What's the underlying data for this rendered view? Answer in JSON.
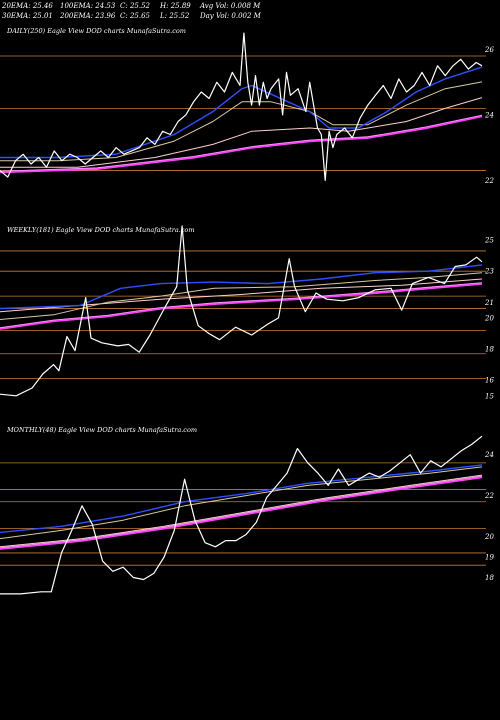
{
  "header": {
    "row1": {
      "ema20": "20EMA: 25.46",
      "ema100": "100EMA: 24.53",
      "close": "C: 25.52",
      "high": "H: 25.89",
      "avg_vol": "Avg Vol: 0.008 M"
    },
    "row2": {
      "ema30": "30EMA: 25.01",
      "ema200": "200EMA: 23.96",
      "chg": "C: 25.65",
      "low": "L: 25.52",
      "day_vol": "Day Vol: 0.002 M"
    }
  },
  "colors": {
    "background": "#000000",
    "price": "#ffffff",
    "ema20": "#2f4fff",
    "ema30": "#d9c9a0",
    "ema100": "#ffd0d0",
    "ema200": "#ff40ff",
    "hline": "#c87a34"
  },
  "chart_data": [
    {
      "type": "line",
      "title": "DAILY(250) Eagle  View  DOD charts MunafaSutra.com",
      "ylim": [
        21.4,
        26.9
      ],
      "y_ticks": [
        26,
        24,
        22
      ],
      "hlines": [
        25.8,
        24.2,
        22.3
      ],
      "n": 250,
      "price": [
        [
          0,
          22.3
        ],
        [
          4,
          22.1
        ],
        [
          8,
          22.6
        ],
        [
          12,
          22.8
        ],
        [
          16,
          22.5
        ],
        [
          20,
          22.7
        ],
        [
          24,
          22.4
        ],
        [
          28,
          22.9
        ],
        [
          32,
          22.6
        ],
        [
          36,
          22.8
        ],
        [
          40,
          22.7
        ],
        [
          44,
          22.5
        ],
        [
          48,
          22.7
        ],
        [
          52,
          22.9
        ],
        [
          56,
          22.7
        ],
        [
          60,
          23.0
        ],
        [
          64,
          22.8
        ],
        [
          68,
          22.9
        ],
        [
          72,
          23.0
        ],
        [
          76,
          23.3
        ],
        [
          80,
          23.1
        ],
        [
          84,
          23.5
        ],
        [
          88,
          23.4
        ],
        [
          92,
          23.8
        ],
        [
          96,
          24.0
        ],
        [
          100,
          24.4
        ],
        [
          104,
          24.7
        ],
        [
          108,
          24.5
        ],
        [
          112,
          25.0
        ],
        [
          116,
          24.7
        ],
        [
          120,
          25.3
        ],
        [
          124,
          24.9
        ],
        [
          126,
          26.5
        ],
        [
          128,
          25.0
        ],
        [
          130,
          24.3
        ],
        [
          132,
          25.2
        ],
        [
          134,
          24.3
        ],
        [
          136,
          25.0
        ],
        [
          138,
          24.5
        ],
        [
          140,
          24.8
        ],
        [
          144,
          25.1
        ],
        [
          146,
          24.0
        ],
        [
          148,
          25.3
        ],
        [
          150,
          24.6
        ],
        [
          154,
          24.8
        ],
        [
          158,
          24.1
        ],
        [
          160,
          25.0
        ],
        [
          164,
          23.6
        ],
        [
          166,
          23.4
        ],
        [
          168,
          22.0
        ],
        [
          170,
          23.5
        ],
        [
          172,
          23.0
        ],
        [
          174,
          23.4
        ],
        [
          178,
          23.6
        ],
        [
          182,
          23.3
        ],
        [
          186,
          23.9
        ],
        [
          190,
          24.3
        ],
        [
          194,
          24.6
        ],
        [
          198,
          24.9
        ],
        [
          202,
          24.5
        ],
        [
          206,
          25.1
        ],
        [
          210,
          24.7
        ],
        [
          214,
          24.9
        ],
        [
          218,
          25.3
        ],
        [
          222,
          24.9
        ],
        [
          226,
          25.5
        ],
        [
          230,
          25.2
        ],
        [
          234,
          25.5
        ],
        [
          238,
          25.7
        ],
        [
          242,
          25.4
        ],
        [
          246,
          25.6
        ],
        [
          249,
          25.5
        ]
      ],
      "ema20": [
        [
          0,
          22.7
        ],
        [
          30,
          22.7
        ],
        [
          60,
          22.8
        ],
        [
          90,
          23.4
        ],
        [
          110,
          24.1
        ],
        [
          125,
          24.8
        ],
        [
          130,
          24.9
        ],
        [
          145,
          24.5
        ],
        [
          160,
          24.1
        ],
        [
          170,
          23.6
        ],
        [
          185,
          23.6
        ],
        [
          200,
          24.1
        ],
        [
          215,
          24.7
        ],
        [
          230,
          25.1
        ],
        [
          249,
          25.46
        ]
      ],
      "ema30": [
        [
          0,
          22.6
        ],
        [
          30,
          22.6
        ],
        [
          60,
          22.7
        ],
        [
          90,
          23.2
        ],
        [
          110,
          23.8
        ],
        [
          125,
          24.4
        ],
        [
          140,
          24.4
        ],
        [
          160,
          24.1
        ],
        [
          172,
          23.7
        ],
        [
          190,
          23.7
        ],
        [
          210,
          24.3
        ],
        [
          230,
          24.8
        ],
        [
          249,
          25.01
        ]
      ],
      "ema100": [
        [
          0,
          22.4
        ],
        [
          40,
          22.4
        ],
        [
          80,
          22.7
        ],
        [
          110,
          23.1
        ],
        [
          130,
          23.5
        ],
        [
          160,
          23.6
        ],
        [
          180,
          23.5
        ],
        [
          210,
          23.8
        ],
        [
          230,
          24.2
        ],
        [
          249,
          24.53
        ]
      ],
      "ema200": [
        [
          0,
          22.25
        ],
        [
          50,
          22.35
        ],
        [
          100,
          22.7
        ],
        [
          130,
          23.0
        ],
        [
          160,
          23.2
        ],
        [
          190,
          23.3
        ],
        [
          220,
          23.6
        ],
        [
          249,
          23.96
        ]
      ]
    },
    {
      "type": "line",
      "title": "WEEKLY(181) Eagle  View  DOD charts MunafaSutra.com",
      "ylim": [
        14.6,
        25.9
      ],
      "y_ticks": [
        25,
        23,
        21,
        20,
        18,
        16,
        15
      ],
      "hlines": [
        24.3,
        23.0,
        21.4,
        20.6,
        19.2,
        17.7,
        16.1
      ],
      "n": 181,
      "price": [
        [
          0,
          15.1
        ],
        [
          6,
          15.0
        ],
        [
          12,
          15.5
        ],
        [
          16,
          16.4
        ],
        [
          20,
          17.0
        ],
        [
          22,
          16.6
        ],
        [
          25,
          18.8
        ],
        [
          28,
          17.9
        ],
        [
          32,
          21.3
        ],
        [
          34,
          18.7
        ],
        [
          38,
          18.4
        ],
        [
          44,
          18.2
        ],
        [
          48,
          18.3
        ],
        [
          52,
          17.8
        ],
        [
          56,
          18.9
        ],
        [
          62,
          20.8
        ],
        [
          66,
          22.0
        ],
        [
          68,
          25.9
        ],
        [
          70,
          21.8
        ],
        [
          74,
          19.5
        ],
        [
          78,
          19.0
        ],
        [
          82,
          18.6
        ],
        [
          88,
          19.4
        ],
        [
          94,
          18.9
        ],
        [
          100,
          19.6
        ],
        [
          104,
          20.0
        ],
        [
          108,
          23.8
        ],
        [
          110,
          22.0
        ],
        [
          114,
          20.4
        ],
        [
          118,
          21.6
        ],
        [
          122,
          21.2
        ],
        [
          128,
          21.1
        ],
        [
          134,
          21.3
        ],
        [
          140,
          21.8
        ],
        [
          146,
          21.9
        ],
        [
          150,
          20.5
        ],
        [
          154,
          22.2
        ],
        [
          160,
          22.6
        ],
        [
          166,
          22.2
        ],
        [
          170,
          23.3
        ],
        [
          174,
          23.4
        ],
        [
          178,
          23.9
        ],
        [
          180,
          23.6
        ]
      ],
      "ema20": [
        [
          0,
          20.6
        ],
        [
          15,
          20.7
        ],
        [
          30,
          20.8
        ],
        [
          45,
          21.9
        ],
        [
          60,
          22.2
        ],
        [
          80,
          22.3
        ],
        [
          100,
          22.2
        ],
        [
          120,
          22.5
        ],
        [
          140,
          22.9
        ],
        [
          160,
          23.0
        ],
        [
          180,
          23.4
        ]
      ],
      "ema30": [
        [
          0,
          19.9
        ],
        [
          20,
          20.2
        ],
        [
          40,
          21.0
        ],
        [
          60,
          21.4
        ],
        [
          80,
          21.9
        ],
        [
          110,
          22.0
        ],
        [
          140,
          22.4
        ],
        [
          160,
          22.6
        ],
        [
          180,
          22.9
        ]
      ],
      "ema100": [
        [
          0,
          20.4
        ],
        [
          30,
          20.8
        ],
        [
          60,
          21.2
        ],
        [
          90,
          21.5
        ],
        [
          120,
          21.9
        ],
        [
          150,
          22.1
        ],
        [
          180,
          22.5
        ]
      ],
      "ema200": [
        [
          0,
          19.3
        ],
        [
          20,
          19.8
        ],
        [
          40,
          20.1
        ],
        [
          60,
          20.6
        ],
        [
          80,
          20.9
        ],
        [
          110,
          21.2
        ],
        [
          140,
          21.6
        ],
        [
          160,
          21.9
        ],
        [
          180,
          22.2
        ]
      ]
    },
    {
      "type": "line",
      "title": "MONTHLY(48) Eagle  View  DOD charts MunafaSutra.com",
      "ylim": [
        16.9,
        25.4
      ],
      "y_ticks": [
        24,
        22,
        20,
        19,
        18
      ],
      "hlines": [
        23.6,
        22.3,
        21.7,
        20.4,
        19.2,
        18.6
      ],
      "n": 48,
      "price": [
        [
          0,
          17.2
        ],
        [
          2,
          17.2
        ],
        [
          4,
          17.3
        ],
        [
          5,
          17.3
        ],
        [
          6,
          19.2
        ],
        [
          7,
          20.3
        ],
        [
          8,
          21.5
        ],
        [
          9,
          20.6
        ],
        [
          10,
          18.8
        ],
        [
          11,
          18.3
        ],
        [
          12,
          18.5
        ],
        [
          13,
          18.0
        ],
        [
          14,
          17.9
        ],
        [
          15,
          18.2
        ],
        [
          16,
          19.0
        ],
        [
          17,
          20.3
        ],
        [
          18,
          22.8
        ],
        [
          19,
          20.8
        ],
        [
          20,
          19.7
        ],
        [
          21,
          19.5
        ],
        [
          22,
          19.8
        ],
        [
          23,
          19.8
        ],
        [
          24,
          20.1
        ],
        [
          25,
          20.7
        ],
        [
          26,
          21.9
        ],
        [
          27,
          22.5
        ],
        [
          28,
          23.1
        ],
        [
          29,
          24.3
        ],
        [
          30,
          23.6
        ],
        [
          31,
          23.1
        ],
        [
          32,
          22.5
        ],
        [
          33,
          23.3
        ],
        [
          34,
          22.5
        ],
        [
          35,
          22.8
        ],
        [
          36,
          23.1
        ],
        [
          37,
          22.9
        ],
        [
          38,
          23.2
        ],
        [
          39,
          23.6
        ],
        [
          40,
          24.0
        ],
        [
          41,
          23.1
        ],
        [
          42,
          23.7
        ],
        [
          43,
          23.4
        ],
        [
          44,
          23.8
        ],
        [
          45,
          24.2
        ],
        [
          46,
          24.5
        ],
        [
          47,
          24.9
        ]
      ],
      "ema20": [
        [
          0,
          20.2
        ],
        [
          6,
          20.5
        ],
        [
          12,
          21.0
        ],
        [
          18,
          21.7
        ],
        [
          24,
          22.1
        ],
        [
          30,
          22.6
        ],
        [
          36,
          22.9
        ],
        [
          42,
          23.2
        ],
        [
          47,
          23.5
        ]
      ],
      "ema30": [
        [
          0,
          19.9
        ],
        [
          6,
          20.3
        ],
        [
          12,
          20.8
        ],
        [
          18,
          21.5
        ],
        [
          24,
          22.0
        ],
        [
          30,
          22.5
        ],
        [
          36,
          22.8
        ],
        [
          42,
          23.1
        ],
        [
          47,
          23.4
        ]
      ],
      "ema100": [
        [
          0,
          19.5
        ],
        [
          8,
          19.9
        ],
        [
          16,
          20.5
        ],
        [
          24,
          21.2
        ],
        [
          32,
          21.9
        ],
        [
          40,
          22.5
        ],
        [
          47,
          23.0
        ]
      ],
      "ema200": [
        [
          0,
          19.4
        ],
        [
          8,
          19.8
        ],
        [
          16,
          20.4
        ],
        [
          24,
          21.1
        ],
        [
          32,
          21.8
        ],
        [
          40,
          22.4
        ],
        [
          47,
          22.9
        ]
      ]
    }
  ]
}
